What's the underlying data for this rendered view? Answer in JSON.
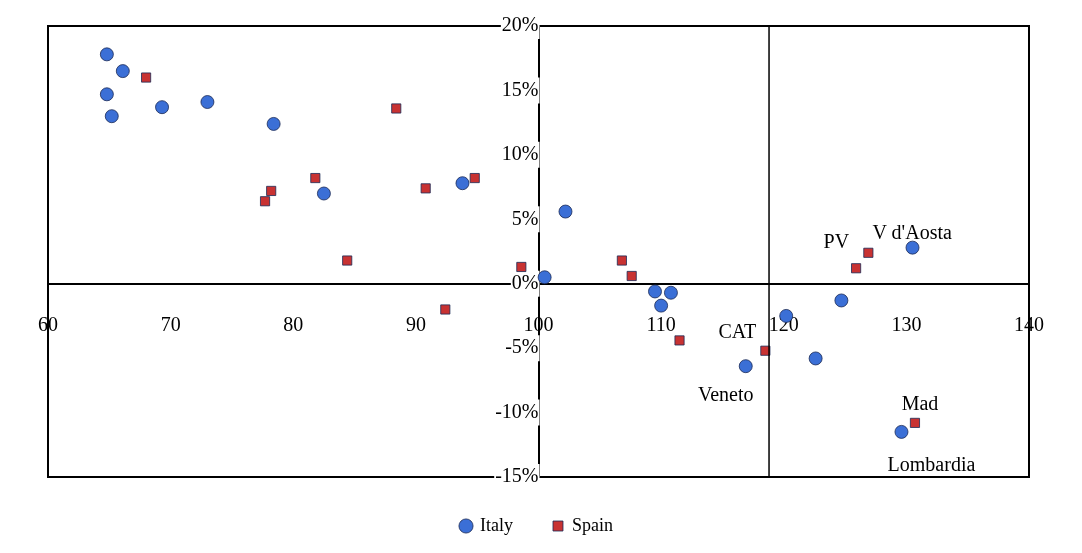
{
  "chart_data": {
    "type": "scatter",
    "series": [
      {
        "name": "Italy",
        "color": "#3b6fd6",
        "marker": "circle",
        "x": [
          64.8,
          66.1,
          64.8,
          65.2,
          69.3,
          73.0,
          78.4,
          82.5,
          93.8,
          102.2,
          100.5,
          109.5,
          110.0,
          110.8,
          116.9,
          120.2,
          122.6,
          124.7,
          130.5,
          129.6
        ],
        "values": [
          17.8,
          16.5,
          14.7,
          13.0,
          13.7,
          14.1,
          12.4,
          7.0,
          7.8,
          5.6,
          0.5,
          -0.6,
          -1.7,
          -0.7,
          -6.4,
          -2.5,
          -5.8,
          -1.3,
          2.8,
          -11.5
        ]
      },
      {
        "name": "Spain",
        "color": "#c83232",
        "marker": "square",
        "x": [
          68.0,
          77.7,
          78.2,
          81.8,
          84.4,
          88.4,
          90.8,
          92.4,
          94.8,
          98.6,
          106.8,
          107.6,
          111.5,
          118.5,
          125.9,
          126.9,
          130.7
        ],
        "values": [
          16.0,
          6.4,
          7.2,
          8.2,
          1.8,
          13.6,
          7.4,
          -2.0,
          8.2,
          1.3,
          1.8,
          0.6,
          -4.4,
          -5.2,
          1.2,
          2.4,
          -10.8
        ]
      }
    ],
    "xlim": [
      60,
      140
    ],
    "xticks": [
      60,
      70,
      80,
      90,
      100,
      110,
      120,
      130,
      140
    ],
    "ylim": [
      -15,
      20
    ],
    "yticks": [
      {
        "value": -15,
        "label": "-15%"
      },
      {
        "value": -10,
        "label": "-10%"
      },
      {
        "value": -5,
        "label": "-5%"
      },
      {
        "value": 0,
        "label": "0%"
      },
      {
        "value": 5,
        "label": "5%"
      },
      {
        "value": 10,
        "label": "10%"
      },
      {
        "value": 15,
        "label": "15%"
      },
      {
        "value": 20,
        "label": "20%"
      }
    ],
    "ref_lines": [
      {
        "axis": "x",
        "value": 118.8
      }
    ],
    "annotations": [
      {
        "text": "V d'Aosta",
        "x": 130.5,
        "y": 2.8
      },
      {
        "text": "PV",
        "x": 126.9,
        "y": 2.4
      },
      {
        "text": "CAT",
        "x": 118.5,
        "y": -5.2
      },
      {
        "text": "Veneto",
        "x": 116.9,
        "y": -6.4
      },
      {
        "text": "Mad",
        "x": 130.7,
        "y": -10.8
      },
      {
        "text": "Lombardia",
        "x": 129.6,
        "y": -11.5
      }
    ],
    "legend": "bottom",
    "grid": false
  }
}
